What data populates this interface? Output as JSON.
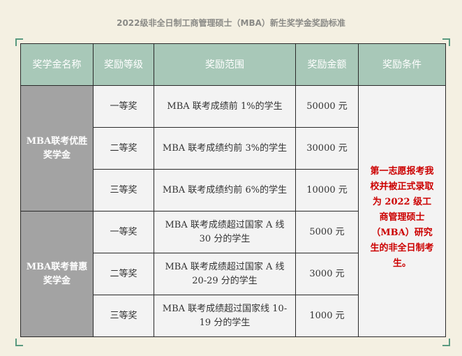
{
  "title": "2022级非全日制工商管理硕士（MBA）新生奖学金奖励标准",
  "headers": [
    "奖学金名称",
    "奖励等级",
    "奖励范围",
    "奖励金额",
    "奖励条件"
  ],
  "groups": [
    {
      "name": "MBA联考优胜奖学金",
      "rows": [
        {
          "level": "一等奖",
          "scope": "MBA 联考成绩前 1%的学生",
          "amount": "50000 元"
        },
        {
          "level": "二等奖",
          "scope": "MBA 联考成绩约前 3%的学生",
          "amount": "30000 元"
        },
        {
          "level": "三等奖",
          "scope": "MBA 联考成绩约前 6%的学生",
          "amount": "10000 元"
        }
      ]
    },
    {
      "name": "MBA联考普惠奖学金",
      "rows": [
        {
          "level": "一等奖",
          "scope": "MBA 联考成绩超过国家 A 线 30 分的学生",
          "amount": "5000 元"
        },
        {
          "level": "二等奖",
          "scope": "MBA 联考成绩超过国家 A 线 20-29 分的学生",
          "amount": "3000 元"
        },
        {
          "level": "三等奖",
          "scope": "MBA 联考成绩超过国家线 10-19 分的学生",
          "amount": "1000 元"
        }
      ]
    }
  ],
  "condition": "第一志愿报考我校并被正式录取为 2022 级工商管理硕士（MBA）研究生的非全日制考生。",
  "colors": {
    "header": "#a8c8b8",
    "name_cell": "#a3a3a3",
    "condition_text": "#cc0000",
    "background": "#f4f0e2"
  }
}
